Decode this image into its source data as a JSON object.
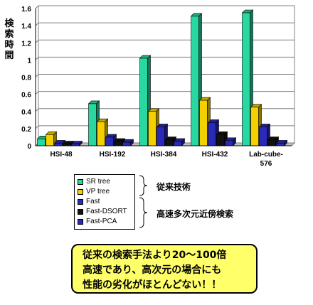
{
  "y_axis_title": "検索時間",
  "chart_data": {
    "type": "bar",
    "categories": [
      "HSI-48",
      "HSI-192",
      "HSI-384",
      "HSI-432",
      "Lab-cube-576"
    ],
    "ylim": [
      0,
      1.6
    ],
    "yticks": [
      "0",
      "0.2",
      "0.4",
      "0.6",
      "0.8",
      "1",
      "1.2",
      "1.4",
      "1.6"
    ],
    "ytick_values": [
      0,
      0.2,
      0.4,
      0.6,
      0.8,
      1.0,
      1.2,
      1.4,
      1.6
    ],
    "grid": true,
    "bar_style": "3d",
    "series": [
      {
        "name": "SR tree",
        "color": "#28d8a0",
        "values": [
          0.08,
          0.49,
          1.02,
          1.51,
          1.55
        ]
      },
      {
        "name": "VP tree",
        "color": "#f5d000",
        "values": [
          0.13,
          0.28,
          0.4,
          0.53,
          0.45
        ]
      },
      {
        "name": "Fast",
        "color": "#2a2ab8",
        "values": [
          0.03,
          0.1,
          0.22,
          0.27,
          0.22
        ]
      },
      {
        "name": "Fast-DSORT",
        "color": "#111111",
        "values": [
          0.02,
          0.05,
          0.07,
          0.13,
          0.07
        ]
      },
      {
        "name": "Fast-PCA",
        "color": "#2a2ab8",
        "values": [
          0.02,
          0.04,
          0.05,
          0.06,
          0.03
        ]
      }
    ]
  },
  "legend": {
    "groups": [
      {
        "label": "従来技術"
      },
      {
        "label": "高速多次元近傍検索"
      }
    ]
  },
  "callout": {
    "lines": [
      "従来の検索手法より20～100倍",
      "高速であり、高次元の場合にも",
      "性能の劣化がほとんどない！！"
    ]
  }
}
